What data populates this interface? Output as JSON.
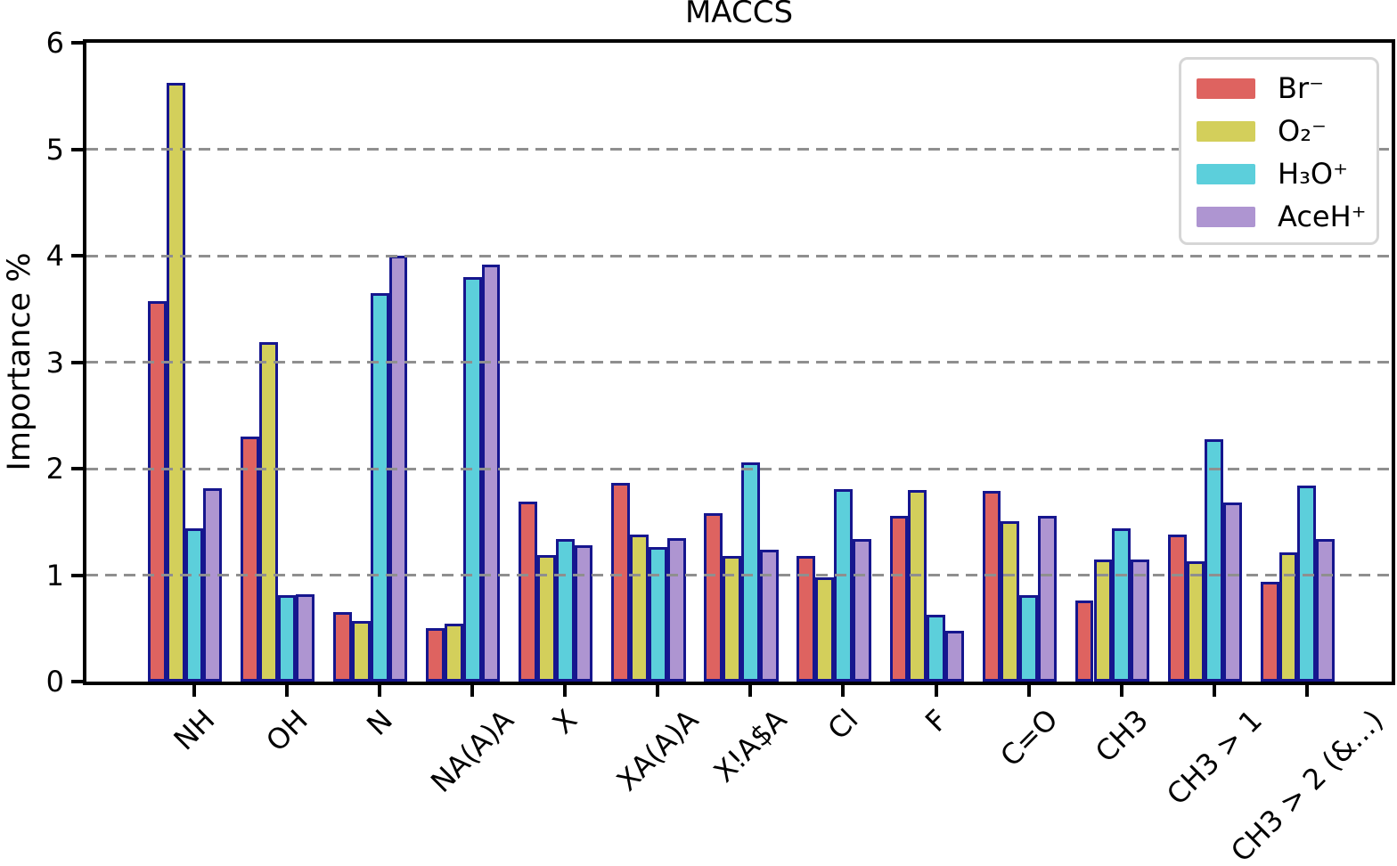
{
  "title": "MACCS",
  "y_axis": {
    "label": "Importance %",
    "tick_labels": [
      "0",
      "1",
      "2",
      "3",
      "4",
      "5",
      "6"
    ]
  },
  "chart_data": {
    "type": "bar",
    "title": "MACCS",
    "xlabel": "",
    "ylabel": "Importance %",
    "ylim": [
      0,
      6
    ],
    "yticks": [
      0,
      1,
      2,
      3,
      4,
      5,
      6
    ],
    "grid": "horizontal dashed gridlines at y=1..5, drawn above bars",
    "legend_position": "upper right",
    "bar_edge_color": "#16168E",
    "gridline_color": "#8F8F8F",
    "categories": [
      "NH",
      "OH",
      "N",
      "NA(A)A",
      "X",
      "XA(A)A",
      "X!A$A",
      "Cl",
      "F",
      "C=O",
      "CH3",
      "CH3 > 1",
      "CH3 > 2 (&...)"
    ],
    "series": [
      {
        "name": "Br⁻",
        "color": "#DE6360",
        "values": [
          3.57,
          2.3,
          0.65,
          0.5,
          1.69,
          1.87,
          1.58,
          1.18,
          1.56,
          1.79,
          0.76,
          1.38,
          0.94
        ]
      },
      {
        "name": "O₂⁻",
        "color": "#D3CF5B",
        "values": [
          5.62,
          3.19,
          0.57,
          0.54,
          1.19,
          1.38,
          1.18,
          0.98,
          1.8,
          1.51,
          1.15,
          1.13,
          1.21
        ]
      },
      {
        "name": "H₃O⁺",
        "color": "#5CCFDB",
        "values": [
          1.44,
          0.81,
          3.65,
          3.8,
          1.34,
          1.26,
          2.06,
          1.81,
          0.63,
          0.81,
          1.44,
          2.28,
          1.84
        ]
      },
      {
        "name": "AceH⁺",
        "color": "#AE95D1",
        "values": [
          1.82,
          0.82,
          4.0,
          3.92,
          1.28,
          1.35,
          1.24,
          1.34,
          0.48,
          1.56,
          1.15,
          1.68,
          1.34
        ]
      }
    ]
  }
}
